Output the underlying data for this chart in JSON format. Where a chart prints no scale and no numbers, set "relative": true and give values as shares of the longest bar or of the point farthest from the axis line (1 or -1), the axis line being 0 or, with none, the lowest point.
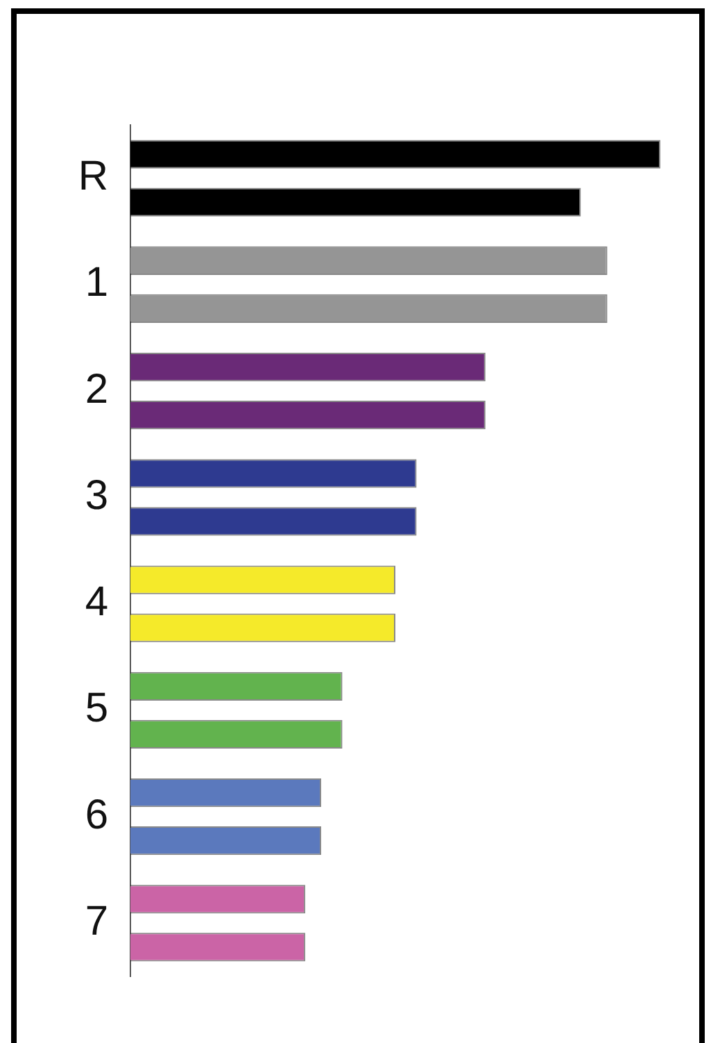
{
  "chart_data": {
    "type": "bar",
    "orientation": "horizontal",
    "relative": true,
    "categories": [
      "R",
      "1",
      "2",
      "3",
      "4",
      "5",
      "6",
      "7"
    ],
    "series": [
      {
        "values": [
          1,
          0.9,
          0.67,
          0.54,
          0.5,
          0.4,
          0.36,
          0.33
        ],
        "colors": [
          "#000000",
          "#959595",
          "#6a2a77",
          "#2e3a90",
          "#f5ea2a",
          "#62b34e",
          "#5b79bd",
          "#cb64a6"
        ]
      },
      {
        "values": [
          0.85,
          0.9,
          0.67,
          0.54,
          0.5,
          0.4,
          0.36,
          0.33
        ],
        "colors": [
          "#000000",
          "#959595",
          "#6a2a77",
          "#2e3a90",
          "#f5ea2a",
          "#62b34e",
          "#5b79bd",
          "#cb64a6"
        ]
      }
    ],
    "legend": false
  }
}
